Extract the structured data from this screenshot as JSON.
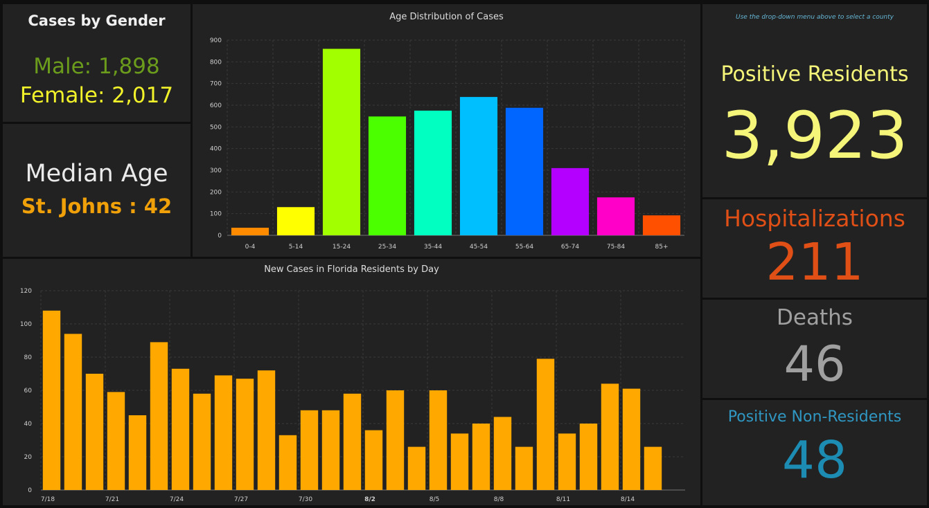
{
  "gender": {
    "title": "Cases by Gender",
    "male": "Male: 1,898",
    "female": "Female: 2,017"
  },
  "median": {
    "title": "Median Age",
    "county": "St. Johns : 42"
  },
  "stats": {
    "hint": "Use the drop-down menu above to select a county",
    "positive_label": "Positive Residents",
    "positive_value": "3,923",
    "hosp_label": "Hospitalizations",
    "hosp_value": "211",
    "deaths_label": "Deaths",
    "deaths_value": "46",
    "nonres_label": "Positive Non-Residents",
    "nonres_value": "48"
  },
  "colors": {
    "background": "#0f0f0f",
    "panel": "#222222",
    "daily_bar": "#ffa800",
    "grid": "#3a3a3a"
  },
  "chart_data": [
    {
      "type": "bar",
      "title": "Age Distribution of Cases",
      "categories": [
        "0-4",
        "5-14",
        "15-24",
        "25-34",
        "35-44",
        "45-54",
        "55-64",
        "65-74",
        "75-84",
        "85+"
      ],
      "values": [
        35,
        130,
        860,
        548,
        575,
        638,
        588,
        310,
        175,
        92
      ],
      "bar_colors": [
        "#ff8c00",
        "#ffff00",
        "#a2ff00",
        "#4cff00",
        "#00ffc0",
        "#00bfff",
        "#0066ff",
        "#b400ff",
        "#ff00c8",
        "#ff5000"
      ],
      "ylim": [
        0,
        900
      ],
      "yticks": [
        0,
        100,
        200,
        300,
        400,
        500,
        600,
        700,
        800,
        900
      ],
      "grid": true
    },
    {
      "type": "bar",
      "title": "New Cases in Florida Residents by Day",
      "categories": [
        "7/18",
        "7/19",
        "7/20",
        "7/21",
        "7/22",
        "7/23",
        "7/24",
        "7/25",
        "7/26",
        "7/27",
        "7/28",
        "7/29",
        "7/30",
        "7/31",
        "8/1",
        "8/2",
        "8/3",
        "8/4",
        "8/5",
        "8/6",
        "8/7",
        "8/8",
        "8/9",
        "8/10",
        "8/11",
        "8/12",
        "8/13",
        "8/14",
        "8/15",
        "8/16"
      ],
      "values": [
        108,
        94,
        70,
        59,
        45,
        89,
        73,
        58,
        69,
        67,
        72,
        33,
        48,
        48,
        58,
        36,
        60,
        26,
        60,
        34,
        40,
        44,
        26,
        79,
        34,
        40,
        64,
        61,
        26,
        0
      ],
      "xtick_labels": [
        "7/18",
        "7/21",
        "7/24",
        "7/27",
        "7/30",
        "8/2",
        "8/5",
        "8/8",
        "8/11",
        "8/14"
      ],
      "xtick_indices": [
        0,
        3,
        6,
        9,
        12,
        15,
        18,
        21,
        24,
        27
      ],
      "bold_tick": "8/2",
      "ylim": [
        0,
        120
      ],
      "yticks": [
        0,
        20,
        40,
        60,
        80,
        100,
        120
      ],
      "color": "#ffa800",
      "grid": true
    }
  ]
}
